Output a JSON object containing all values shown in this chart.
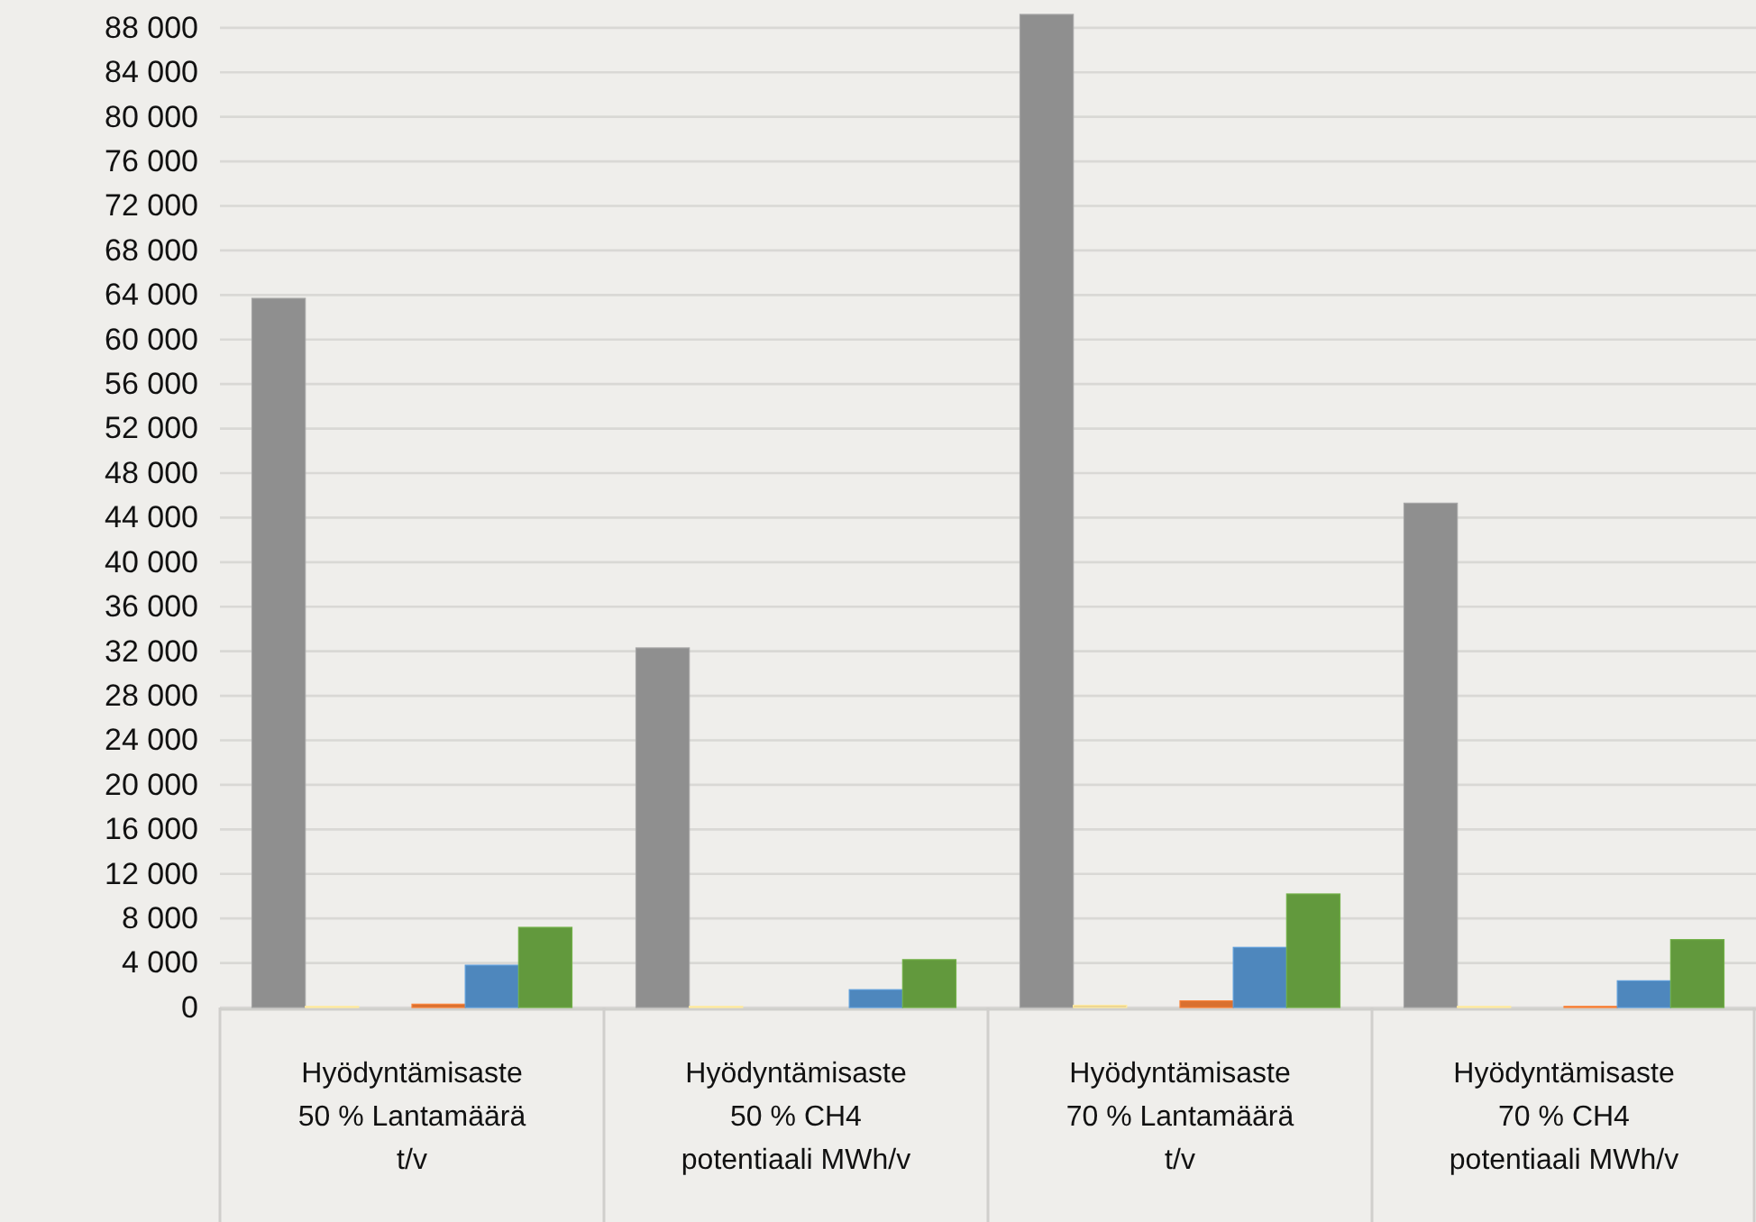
{
  "chart_data": {
    "type": "bar",
    "categories": [
      "Hyödyntämisaste 50 % Lantamäärä t/v",
      "Hyödyntämisaste 50 % CH4 potentiaali MWh/v",
      "Hyödyntämisaste 70 % Lantamäärä t/v",
      "Hyödyntämisaste 70 % CH4 potentiaali MWh/v"
    ],
    "series": [
      {
        "color": "#8f8f8f",
        "values": [
          63700,
          32300,
          89200,
          45300
        ]
      },
      {
        "color": "#e6cc8c",
        "values": [
          100,
          100,
          200,
          100
        ]
      },
      {
        "color": "#a5a5a5",
        "values": [
          null,
          null,
          null,
          null
        ]
      },
      {
        "color": "#d97030",
        "values": [
          300,
          null,
          600,
          100
        ]
      },
      {
        "color": "#4e87bd",
        "values": [
          3800,
          1600,
          5400,
          2400
        ]
      },
      {
        "color": "#62993d",
        "values": [
          7200,
          4300,
          10200,
          6100
        ]
      }
    ],
    "ylim": [
      0,
      89200
    ],
    "yticks": [
      {
        "value": 0,
        "label": "0"
      },
      {
        "value": 4000,
        "label": "4 000"
      },
      {
        "value": 8000,
        "label": "8 000"
      },
      {
        "value": 12000,
        "label": "12 000"
      },
      {
        "value": 16000,
        "label": "16 000"
      },
      {
        "value": 20000,
        "label": "20 000"
      },
      {
        "value": 24000,
        "label": "24 000"
      },
      {
        "value": 28000,
        "label": "28 000"
      },
      {
        "value": 32000,
        "label": "32 000"
      },
      {
        "value": 36000,
        "label": "36 000"
      },
      {
        "value": 40000,
        "label": "40 000"
      },
      {
        "value": 44000,
        "label": "44 000"
      },
      {
        "value": 48000,
        "label": "48 000"
      },
      {
        "value": 52000,
        "label": "52 000"
      },
      {
        "value": 56000,
        "label": "56 000"
      },
      {
        "value": 60000,
        "label": "60 000"
      },
      {
        "value": 64000,
        "label": "64 000"
      },
      {
        "value": 68000,
        "label": "68 000"
      },
      {
        "value": 72000,
        "label": "72 000"
      },
      {
        "value": 76000,
        "label": "76 000"
      },
      {
        "value": 80000,
        "label": "80 000"
      },
      {
        "value": 84000,
        "label": "84 000"
      },
      {
        "value": 88000,
        "label": "88 000"
      }
    ],
    "grid": "y"
  }
}
